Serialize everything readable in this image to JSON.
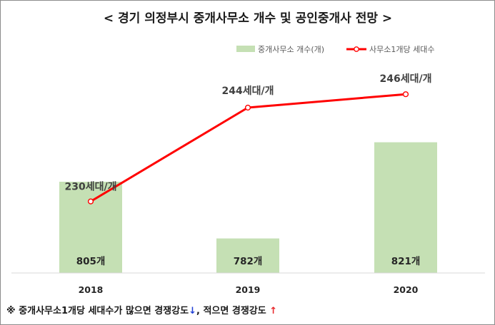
{
  "chart_data": {
    "type": "bar",
    "title": "< 경기 의정부시 중개사무소 개수 및 공인중개사 전망 >",
    "categories": [
      "2018",
      "2019",
      "2020"
    ],
    "series": [
      {
        "name": "중개사무소 개수(개)",
        "type": "bar",
        "values": [
          805,
          782,
          821
        ],
        "labels": [
          "805개",
          "782개",
          "821개"
        ],
        "color": "#c5e0b4"
      },
      {
        "name": "사무소1개당 세대수",
        "type": "line",
        "values": [
          230,
          244,
          246
        ],
        "labels": [
          "230세대/개",
          "244세대/개",
          "246세대/개"
        ],
        "color": "#ff0000"
      }
    ],
    "grid": false,
    "legend_position": "top-right"
  },
  "footnote": {
    "text_main": "※ 중개사무소1개당 세대수가 많으면 경쟁강도",
    "arrow_down": "↓",
    "text_mid": ", 적으면 경쟁강도 ",
    "arrow_up": "↑"
  }
}
